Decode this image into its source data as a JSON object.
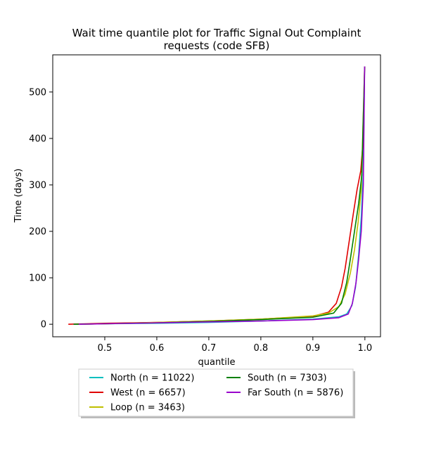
{
  "chart_data": {
    "type": "line",
    "title_lines": [
      "Wait time quantile plot for Traffic Signal Out Complaint",
      "requests (code SFB)"
    ],
    "xlabel": "quantile",
    "ylabel": "Time (days)",
    "xlim": [
      0.4,
      1.03
    ],
    "ylim": [
      -27,
      580
    ],
    "xticks": [
      0.5,
      0.6,
      0.7,
      0.8,
      0.9,
      1.0
    ],
    "xtick_labels": [
      "0.5",
      "0.6",
      "0.7",
      "0.8",
      "0.9",
      "1.0"
    ],
    "yticks": [
      0,
      100,
      200,
      300,
      400,
      500
    ],
    "ytick_labels": [
      "0",
      "100",
      "200",
      "300",
      "400",
      "500"
    ],
    "legend_placement": "below-center",
    "series": [
      {
        "name": "North (n = 11022)",
        "color": "#00bfbf",
        "points": [
          [
            0.44,
            0
          ],
          [
            0.5,
            1
          ],
          [
            0.6,
            2
          ],
          [
            0.7,
            4
          ],
          [
            0.8,
            7
          ],
          [
            0.9,
            11
          ],
          [
            0.95,
            16
          ],
          [
            0.965,
            22
          ],
          [
            0.975,
            40
          ],
          [
            0.982,
            80
          ],
          [
            0.988,
            150
          ],
          [
            0.993,
            230
          ],
          [
            0.997,
            330
          ],
          [
            0.9995,
            555
          ]
        ]
      },
      {
        "name": "West (n = 6657)",
        "color": "#e00000",
        "points": [
          [
            0.43,
            0
          ],
          [
            0.5,
            2
          ],
          [
            0.6,
            4
          ],
          [
            0.7,
            7
          ],
          [
            0.8,
            11
          ],
          [
            0.9,
            17
          ],
          [
            0.93,
            26
          ],
          [
            0.945,
            45
          ],
          [
            0.955,
            80
          ],
          [
            0.962,
            120
          ],
          [
            0.97,
            180
          ],
          [
            0.978,
            240
          ],
          [
            0.985,
            290
          ],
          [
            0.992,
            330
          ],
          [
            0.997,
            400
          ],
          [
            0.9995,
            555
          ]
        ]
      },
      {
        "name": "Loop (n = 3463)",
        "color": "#bfbf00",
        "points": [
          [
            0.46,
            0
          ],
          [
            0.5,
            1
          ],
          [
            0.6,
            4
          ],
          [
            0.7,
            7
          ],
          [
            0.8,
            11
          ],
          [
            0.9,
            18
          ],
          [
            0.93,
            24
          ],
          [
            0.95,
            38
          ],
          [
            0.962,
            65
          ],
          [
            0.972,
            110
          ],
          [
            0.98,
            160
          ],
          [
            0.987,
            220
          ],
          [
            0.993,
            290
          ],
          [
            0.9995,
            555
          ]
        ]
      },
      {
        "name": "South (n = 7303)",
        "color": "#008000",
        "points": [
          [
            0.44,
            0
          ],
          [
            0.5,
            1
          ],
          [
            0.6,
            3
          ],
          [
            0.7,
            6
          ],
          [
            0.8,
            10
          ],
          [
            0.9,
            15
          ],
          [
            0.94,
            24
          ],
          [
            0.955,
            45
          ],
          [
            0.965,
            90
          ],
          [
            0.972,
            140
          ],
          [
            0.98,
            200
          ],
          [
            0.988,
            260
          ],
          [
            0.994,
            320
          ],
          [
            0.9995,
            555
          ]
        ]
      },
      {
        "name": "Far South (n = 5876)",
        "color": "#9900cc",
        "points": [
          [
            0.45,
            0
          ],
          [
            0.5,
            1
          ],
          [
            0.6,
            3
          ],
          [
            0.7,
            5
          ],
          [
            0.8,
            7
          ],
          [
            0.9,
            10
          ],
          [
            0.95,
            14
          ],
          [
            0.968,
            22
          ],
          [
            0.976,
            45
          ],
          [
            0.983,
            90
          ],
          [
            0.988,
            140
          ],
          [
            0.993,
            200
          ],
          [
            0.997,
            300
          ],
          [
            0.9995,
            555
          ]
        ]
      }
    ]
  }
}
